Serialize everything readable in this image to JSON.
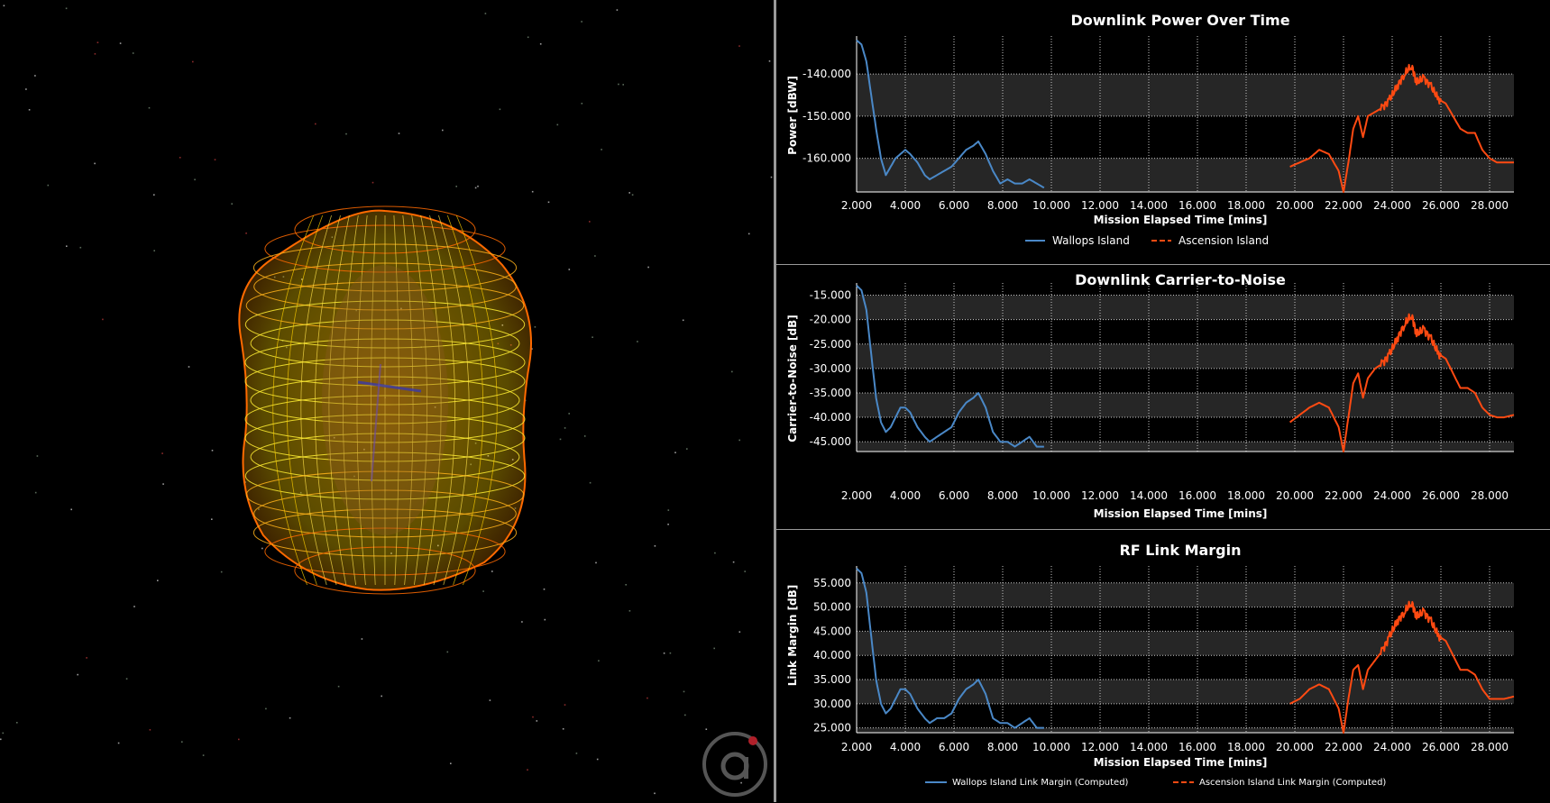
{
  "charts": [
    {
      "title": "Downlink Power Over Time",
      "ylabel": "Power [dBW]",
      "xlabel": "Mission Elapsed Time [mins]",
      "legend": [
        "Wallops Island",
        "Ascension Island"
      ]
    },
    {
      "title": "Downlink Carrier-to-Noise",
      "ylabel": "Carrier-to-Noise [dB]",
      "xlabel": "Mission Elapsed Time [mins]",
      "legend": [
        "Wallops Island",
        "Ascension Island"
      ]
    },
    {
      "title": "RF Link Margin",
      "ylabel": "Link Margin [dB]",
      "xlabel": "Mission Elapsed Time [mins]",
      "legend": [
        "Wallops Island Link Margin (Computed)",
        "Ascension Island Link Margin (Computed)"
      ]
    }
  ],
  "colors": {
    "wallops": "#4a88c7",
    "ascension": "#ff4a12",
    "band": "#262626",
    "grid": "#c8c8c8"
  },
  "viewport": {
    "subject": "antenna gain pattern wireframe",
    "colors": [
      "#ffff33",
      "#ff9a1a",
      "#ff5a00"
    ],
    "logo_icon": "agi-logo-icon"
  },
  "chart_data": [
    {
      "type": "line",
      "title": "Downlink Power Over Time",
      "xlabel": "Mission Elapsed Time [mins]",
      "ylabel": "Power [dBW]",
      "xlim": [
        2,
        29
      ],
      "ylim": [
        -168,
        -131
      ],
      "xticks": [
        "2.000",
        "4.000",
        "6.000",
        "8.000",
        "10.000",
        "12.000",
        "14.000",
        "16.000",
        "18.000",
        "20.000",
        "22.000",
        "24.000",
        "26.000",
        "28.000"
      ],
      "yticks": [
        "-140.000",
        "-150.000",
        "-160.000"
      ],
      "legend_position": "bottom",
      "grid": true,
      "series": [
        {
          "name": "Wallops Island",
          "style": "solid",
          "x": [
            2.0,
            2.2,
            2.4,
            2.6,
            2.8,
            3.0,
            3.2,
            3.4,
            3.6,
            3.8,
            4.0,
            4.2,
            4.5,
            4.8,
            5.0,
            5.3,
            5.6,
            5.9,
            6.2,
            6.5,
            6.8,
            7.0,
            7.3,
            7.6,
            7.9,
            8.2,
            8.5,
            8.8,
            9.1,
            9.4,
            9.7
          ],
          "y": [
            -132,
            -133,
            -137,
            -145,
            -153,
            -160,
            -164,
            -162,
            -160,
            -159,
            -158,
            -159,
            -161,
            -164,
            -165,
            -164,
            -163,
            -162,
            -160,
            -158,
            -157,
            -156,
            -159,
            -163,
            -166,
            -165,
            -166,
            -166,
            -165,
            -166,
            -167
          ]
        },
        {
          "name": "Ascension Island",
          "style": "dashed",
          "x": [
            19.8,
            20.2,
            20.6,
            21.0,
            21.4,
            21.8,
            22.0,
            22.2,
            22.4,
            22.6,
            22.8,
            23.0,
            23.3,
            23.6,
            23.9,
            24.2,
            24.5,
            24.8,
            25.0,
            25.3,
            25.6,
            25.9,
            26.2,
            26.5,
            26.8,
            27.1,
            27.4,
            27.7,
            28.0,
            28.3,
            28.6,
            29.0
          ],
          "y": [
            -162,
            -161,
            -160,
            -158,
            -159,
            -163,
            -168,
            -161,
            -153,
            -150,
            -155,
            -150,
            -149,
            -148,
            -146,
            -143,
            -140,
            -138,
            -142,
            -141,
            -143,
            -146,
            -147,
            -150,
            -153,
            -154,
            -154,
            -158,
            -160,
            -161,
            -161,
            -161
          ]
        }
      ]
    },
    {
      "type": "line",
      "title": "Downlink Carrier-to-Noise",
      "xlabel": "Mission Elapsed Time [mins]",
      "ylabel": "Carrier-to-Noise [dB]",
      "xlim": [
        2,
        29
      ],
      "ylim": [
        -47,
        -12.5
      ],
      "xticks": [
        "2.000",
        "4.000",
        "6.000",
        "8.000",
        "10.000",
        "12.000",
        "14.000",
        "16.000",
        "18.000",
        "20.000",
        "22.000",
        "24.000",
        "26.000",
        "28.000"
      ],
      "yticks": [
        "-15.000",
        "-20.000",
        "-25.000",
        "-30.000",
        "-35.000",
        "-40.000",
        "-45.000"
      ],
      "legend_position": "bottom",
      "grid": true,
      "series": [
        {
          "name": "Wallops Island",
          "style": "solid",
          "x": [
            2.0,
            2.2,
            2.4,
            2.6,
            2.8,
            3.0,
            3.2,
            3.4,
            3.6,
            3.8,
            4.0,
            4.2,
            4.5,
            4.8,
            5.0,
            5.3,
            5.6,
            5.9,
            6.2,
            6.5,
            6.8,
            7.0,
            7.3,
            7.6,
            7.9,
            8.2,
            8.5,
            8.8,
            9.1,
            9.4,
            9.7
          ],
          "y": [
            -13,
            -14,
            -18,
            -27,
            -36,
            -41,
            -43,
            -42,
            -40,
            -38,
            -38,
            -39,
            -42,
            -44,
            -45,
            -44,
            -43,
            -42,
            -39,
            -37,
            -36,
            -35,
            -38,
            -43,
            -45,
            -45,
            -46,
            -45,
            -44,
            -46,
            -46
          ]
        },
        {
          "name": "Ascension Island",
          "style": "dashed",
          "x": [
            19.8,
            20.2,
            20.6,
            21.0,
            21.4,
            21.8,
            22.0,
            22.2,
            22.4,
            22.6,
            22.8,
            23.0,
            23.3,
            23.6,
            23.9,
            24.2,
            24.5,
            24.8,
            25.0,
            25.3,
            25.6,
            25.9,
            26.2,
            26.5,
            26.8,
            27.1,
            27.4,
            27.7,
            28.0,
            28.3,
            28.6,
            29.0
          ],
          "y": [
            -41,
            -39.5,
            -38,
            -37,
            -38,
            -42,
            -47,
            -40,
            -33,
            -31,
            -36,
            -32,
            -30,
            -29,
            -27,
            -24,
            -21,
            -19,
            -23,
            -22,
            -24,
            -27,
            -28,
            -31,
            -34,
            -34,
            -35,
            -38,
            -39.5,
            -40,
            -40,
            -39.5
          ]
        }
      ]
    },
    {
      "type": "line",
      "title": "RF Link Margin",
      "xlabel": "Mission Elapsed Time [mins]",
      "ylabel": "Link Margin [dB]",
      "xlim": [
        2,
        29
      ],
      "ylim": [
        24,
        58.5
      ],
      "xticks": [
        "2.000",
        "4.000",
        "6.000",
        "8.000",
        "10.000",
        "12.000",
        "14.000",
        "16.000",
        "18.000",
        "20.000",
        "22.000",
        "24.000",
        "26.000",
        "28.000"
      ],
      "yticks": [
        "55.000",
        "50.000",
        "45.000",
        "40.000",
        "35.000",
        "30.000",
        "25.000"
      ],
      "legend_position": "bottom",
      "grid": true,
      "series": [
        {
          "name": "Wallops Island Link Margin (Computed)",
          "style": "solid",
          "x": [
            2.0,
            2.2,
            2.4,
            2.6,
            2.8,
            3.0,
            3.2,
            3.4,
            3.6,
            3.8,
            4.0,
            4.2,
            4.5,
            4.8,
            5.0,
            5.3,
            5.6,
            5.9,
            6.2,
            6.5,
            6.8,
            7.0,
            7.3,
            7.6,
            7.9,
            8.2,
            8.5,
            8.8,
            9.1,
            9.4,
            9.7
          ],
          "y": [
            58,
            57,
            53,
            44,
            35,
            30,
            28,
            29,
            31,
            33,
            33,
            32,
            29,
            27,
            26,
            27,
            27,
            28,
            31,
            33,
            34,
            35,
            32,
            27,
            26,
            26,
            25,
            26,
            27,
            25,
            25
          ]
        },
        {
          "name": "Ascension Island Link Margin (Computed)",
          "style": "dashed",
          "x": [
            19.8,
            20.2,
            20.6,
            21.0,
            21.4,
            21.8,
            22.0,
            22.2,
            22.4,
            22.6,
            22.8,
            23.0,
            23.3,
            23.6,
            23.9,
            24.2,
            24.5,
            24.8,
            25.0,
            25.3,
            25.6,
            25.9,
            26.2,
            26.5,
            26.8,
            27.1,
            27.4,
            27.7,
            28.0,
            28.3,
            28.6,
            29.0
          ],
          "y": [
            30,
            31,
            33,
            34,
            33,
            29,
            24,
            31,
            37,
            38,
            33,
            37,
            39,
            41,
            44,
            47,
            49,
            51,
            48,
            49,
            47,
            44,
            43,
            40,
            37,
            37,
            36,
            33,
            31,
            31,
            31,
            31.5
          ]
        }
      ]
    }
  ]
}
